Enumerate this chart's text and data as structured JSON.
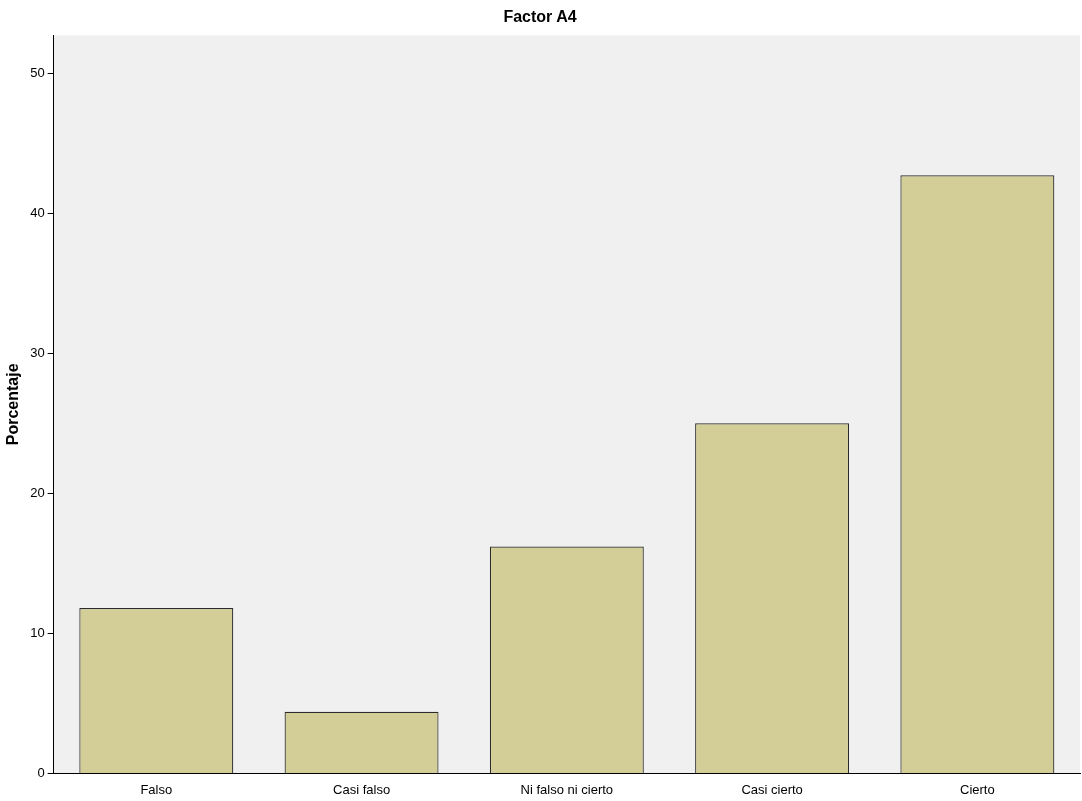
{
  "chart_data": {
    "type": "bar",
    "title": "Factor A4",
    "ylabel": "Porcentaje",
    "categories": [
      "Falso",
      "Casi falso",
      "Ni falso ni cierto",
      "Casi cierto",
      "Cierto"
    ],
    "values": [
      11.8,
      4.4,
      16.2,
      25.0,
      42.7
    ],
    "color": "#d3ce97",
    "ylim": [
      0,
      52.7
    ],
    "yticks": [
      0,
      10,
      20,
      30,
      40,
      50
    ],
    "grid": false,
    "legend": false
  }
}
